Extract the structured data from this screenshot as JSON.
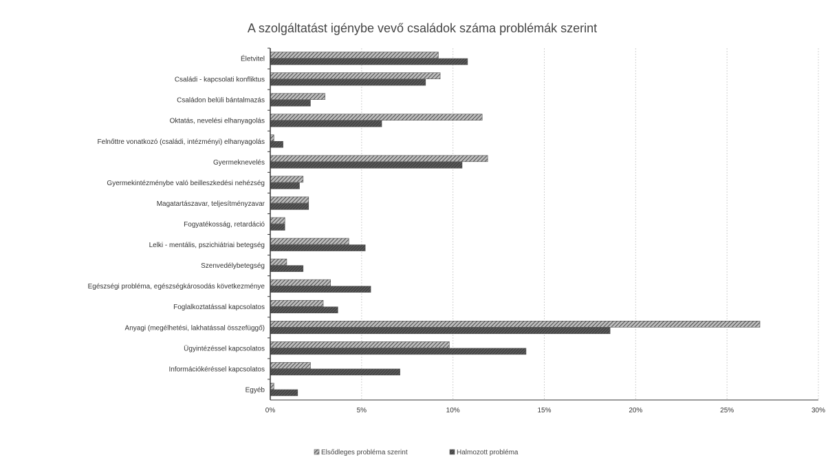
{
  "chart_data": {
    "type": "bar",
    "orientation": "horizontal",
    "title": "A szolgáltatást igénybe vevő családok száma problémák szerint",
    "categories": [
      "Életvitel",
      "Családi - kapcsolati konfliktus",
      "Családon belüli bántalmazás",
      "Oktatás, nevelési elhanyagolás",
      "Felnőttre vonatkozó (családi, intézményi) elhanyagolás",
      "Gyermeknevelés",
      "Gyermekintézménybe való beilleszkedési nehézség",
      "Magatartászavar, teljesítményzavar",
      "Fogyatékosság, retardáció",
      "Lelki - mentális, pszichiátriai betegség",
      "Szenvedélybetegség",
      "Egészségi probléma, egészségkárosodás következménye",
      "Foglalkoztatással kapcsolatos",
      "Anyagi (megélhetési, lakhatással összefüggő)",
      "Ügyintézéssel kapcsolatos",
      "Információkéréssel kapcsolatos",
      "Egyéb"
    ],
    "series": [
      {
        "name": "Elsődleges probléma szerint",
        "color": "#8c8c8c",
        "values": [
          9.2,
          9.3,
          3.0,
          11.6,
          0.2,
          11.9,
          1.8,
          2.1,
          0.8,
          4.3,
          0.9,
          3.3,
          2.9,
          26.8,
          9.8,
          2.2,
          0.2
        ]
      },
      {
        "name": "Halmozott probléma",
        "color": "#6e6e6e",
        "values": [
          10.8,
          8.5,
          2.2,
          6.1,
          0.7,
          10.5,
          1.6,
          2.1,
          0.8,
          5.2,
          1.8,
          5.5,
          3.7,
          18.6,
          14.0,
          7.1,
          1.5
        ]
      }
    ],
    "x_ticks": [
      "0%",
      "5%",
      "10%",
      "15%",
      "20%",
      "25%",
      "30%"
    ],
    "xlim": [
      0,
      30
    ],
    "grid": "vertical",
    "legend": "bottom"
  }
}
